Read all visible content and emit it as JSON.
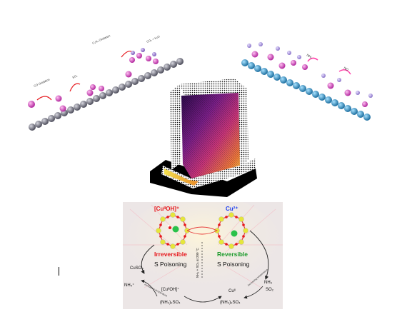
{
  "left_panel": {
    "label_co": "CO Oxidation",
    "label_c3h6": "C₃H₆ Oxidation",
    "label_so2": "SO₂",
    "label_co2h2o": "CO₂ + H₂O"
  },
  "right_panel": {
    "label_nh3": "NH₃",
    "label_no": "NO"
  },
  "scheme": {
    "cu_oh": "[CuᴵᴵOH]⁺",
    "cu2": "Cu²⁺",
    "irreversible": "Irreversible",
    "reversible": "Reversible",
    "poisoning_left": "S Poisoning",
    "poisoning_right": "S Poisoning",
    "center_vertical": "NH₃ + SO₂ at 200 °C",
    "cuso4": "CuSO₄",
    "nh4": "NH₄⁺",
    "cu_oh_bottom": "[CuᴵᴵOH]⁺",
    "nh4_so4_left": "(NH₄)₂SO₄",
    "cu_bottom": "Cuᴵᴵ",
    "nh4_so4_right": "(NH₄)₂SO₄",
    "nh3_right": "NH₃",
    "so2_right": "SO₂",
    "arrow_left": "increasing temperature",
    "arrow_right": "increasing temperature"
  },
  "colors": {
    "red": "#e6171c",
    "blue": "#1e3ff0",
    "green": "#1a9a2a",
    "pink": "#ff3fa8",
    "cyan": "#2b95c8",
    "node": "#e6e63a"
  }
}
